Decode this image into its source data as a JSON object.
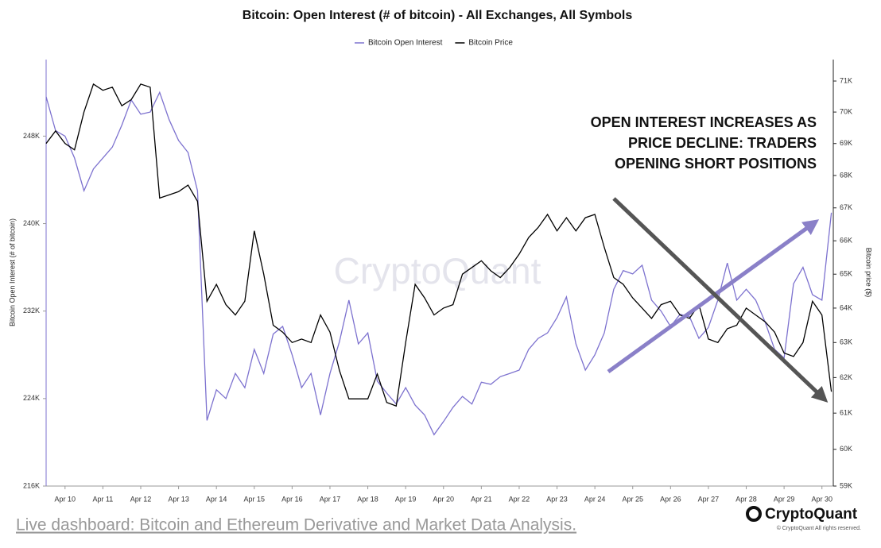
{
  "chart_data": {
    "type": "line",
    "title": "Bitcoin: Open Interest (# of bitcoin) - All Exchanges, All Symbols",
    "ylabel": "Bitcoin Open Interest (# of bitcoin)",
    "y2label": "Bitcoin price ($)",
    "annotation": [
      "OPEN INTEREST INCREASES AS",
      "PRICE DECLINE: TRADERS",
      "OPENING SHORT POSITIONS"
    ],
    "watermark": "CryptoQuant",
    "grid": false,
    "y2log": true,
    "legend": "top",
    "x": [
      9.5,
      9.75,
      10,
      10.25,
      10.5,
      10.75,
      11,
      11.25,
      11.5,
      11.75,
      12,
      12.25,
      12.5,
      12.75,
      13,
      13.25,
      13.5,
      13.75,
      14,
      14.25,
      14.5,
      14.75,
      15,
      15.25,
      15.5,
      15.75,
      16,
      16.25,
      16.5,
      16.75,
      17,
      17.25,
      17.5,
      17.75,
      18,
      18.25,
      18.5,
      18.75,
      19,
      19.25,
      19.5,
      19.75,
      20,
      20.25,
      20.5,
      20.75,
      21,
      21.25,
      21.5,
      21.75,
      22,
      22.25,
      22.5,
      22.75,
      23,
      23.25,
      23.5,
      23.75,
      24,
      24.25,
      24.5,
      24.75,
      25,
      25.25,
      25.5,
      25.75,
      26,
      26.25,
      26.5,
      26.75,
      27,
      27.25,
      27.5,
      27.75,
      28,
      28.25,
      28.5,
      28.75,
      29,
      29.25,
      29.5,
      29.75,
      30,
      30.25
    ],
    "xlim": [
      9.5,
      30.3
    ],
    "xticks": [
      {
        "value": 10,
        "label": "Apr 10"
      },
      {
        "value": 11,
        "label": "Apr 11"
      },
      {
        "value": 12,
        "label": "Apr 12"
      },
      {
        "value": 13,
        "label": "Apr 13"
      },
      {
        "value": 14,
        "label": "Apr 14"
      },
      {
        "value": 15,
        "label": "Apr 15"
      },
      {
        "value": 16,
        "label": "Apr 16"
      },
      {
        "value": 17,
        "label": "Apr 17"
      },
      {
        "value": 18,
        "label": "Apr 18"
      },
      {
        "value": 19,
        "label": "Apr 19"
      },
      {
        "value": 20,
        "label": "Apr 20"
      },
      {
        "value": 21,
        "label": "Apr 21"
      },
      {
        "value": 22,
        "label": "Apr 22"
      },
      {
        "value": 23,
        "label": "Apr 23"
      },
      {
        "value": 24,
        "label": "Apr 24"
      },
      {
        "value": 25,
        "label": "Apr 25"
      },
      {
        "value": 26,
        "label": "Apr 26"
      },
      {
        "value": 27,
        "label": "Apr 27"
      },
      {
        "value": 28,
        "label": "Apr 28"
      },
      {
        "value": 29,
        "label": "Apr 29"
      },
      {
        "value": 30,
        "label": "Apr 30"
      }
    ],
    "ylim": [
      216000,
      255000
    ],
    "yticks": [
      {
        "value": 216000,
        "label": "216K"
      },
      {
        "value": 224000,
        "label": "224K"
      },
      {
        "value": 232000,
        "label": "232K"
      },
      {
        "value": 240000,
        "label": "240K"
      },
      {
        "value": 248000,
        "label": "248K"
      }
    ],
    "y2lim": [
      59000,
      71700
    ],
    "y2ticks": [
      {
        "value": 59000,
        "label": "59K"
      },
      {
        "value": 60000,
        "label": "60K"
      },
      {
        "value": 61000,
        "label": "61K"
      },
      {
        "value": 62000,
        "label": "62K"
      },
      {
        "value": 63000,
        "label": "63K"
      },
      {
        "value": 64000,
        "label": "64K"
      },
      {
        "value": 65000,
        "label": "65K"
      },
      {
        "value": 66000,
        "label": "66K"
      },
      {
        "value": 67000,
        "label": "67K"
      },
      {
        "value": 68000,
        "label": "68K"
      },
      {
        "value": 69000,
        "label": "69K"
      },
      {
        "value": 70000,
        "label": "70K"
      },
      {
        "value": 71000,
        "label": "71K"
      }
    ],
    "series": [
      {
        "name": "Bitcoin Open Interest",
        "color": "#7d72cf",
        "axis": "y",
        "values": [
          251600,
          248500,
          248000,
          246000,
          243000,
          245000,
          246000,
          247000,
          249000,
          251300,
          250000,
          250200,
          252000,
          249500,
          247600,
          246500,
          243000,
          222000,
          224800,
          224000,
          226300,
          225000,
          228500,
          226300,
          229900,
          230600,
          228000,
          225000,
          226300,
          222500,
          226300,
          229200,
          233000,
          229000,
          230000,
          225600,
          224500,
          223500,
          225000,
          223400,
          222500,
          220700,
          221900,
          223200,
          224200,
          223500,
          225500,
          225300,
          226000,
          226300,
          226600,
          228500,
          229500,
          230000,
          231400,
          233300,
          229000,
          226600,
          228000,
          230000,
          234000,
          235700,
          235400,
          236200,
          233000,
          232000,
          230600,
          231700,
          231500,
          229500,
          230500,
          233000,
          236400,
          233000,
          234000,
          233000,
          231000,
          228500,
          227700,
          234500,
          236000,
          233500,
          233000,
          241000
        ]
      },
      {
        "name": "Bitcoin Price",
        "color": "#000000",
        "axis": "y2",
        "values": [
          69000,
          69400,
          69000,
          68800,
          70000,
          70900,
          70700,
          70800,
          70200,
          70400,
          70900,
          70800,
          67300,
          67400,
          67500,
          67700,
          67200,
          64200,
          64700,
          64100,
          63800,
          64200,
          66300,
          65000,
          63500,
          63300,
          63000,
          63100,
          63000,
          63800,
          63300,
          62200,
          61400,
          61400,
          61400,
          62100,
          61300,
          61200,
          63000,
          64700,
          64300,
          63800,
          64000,
          64100,
          65000,
          65200,
          65400,
          65100,
          64900,
          65200,
          65600,
          66100,
          66400,
          66800,
          66300,
          66700,
          66300,
          66700,
          66800,
          65800,
          64900,
          64700,
          64300,
          64000,
          63700,
          64100,
          64200,
          63800,
          63700,
          64100,
          63100,
          63000,
          63400,
          63500,
          64000,
          63800,
          63600,
          63300,
          62700,
          62600,
          63000,
          64200,
          63800,
          61600
        ]
      }
    ]
  },
  "footer": {
    "link": "Live dashboard: Bitcoin and Ethereum Derivative and Market Data Analysis.",
    "brand": "CryptoQuant",
    "copyright": "© CryptoQuant All rights reserved."
  }
}
